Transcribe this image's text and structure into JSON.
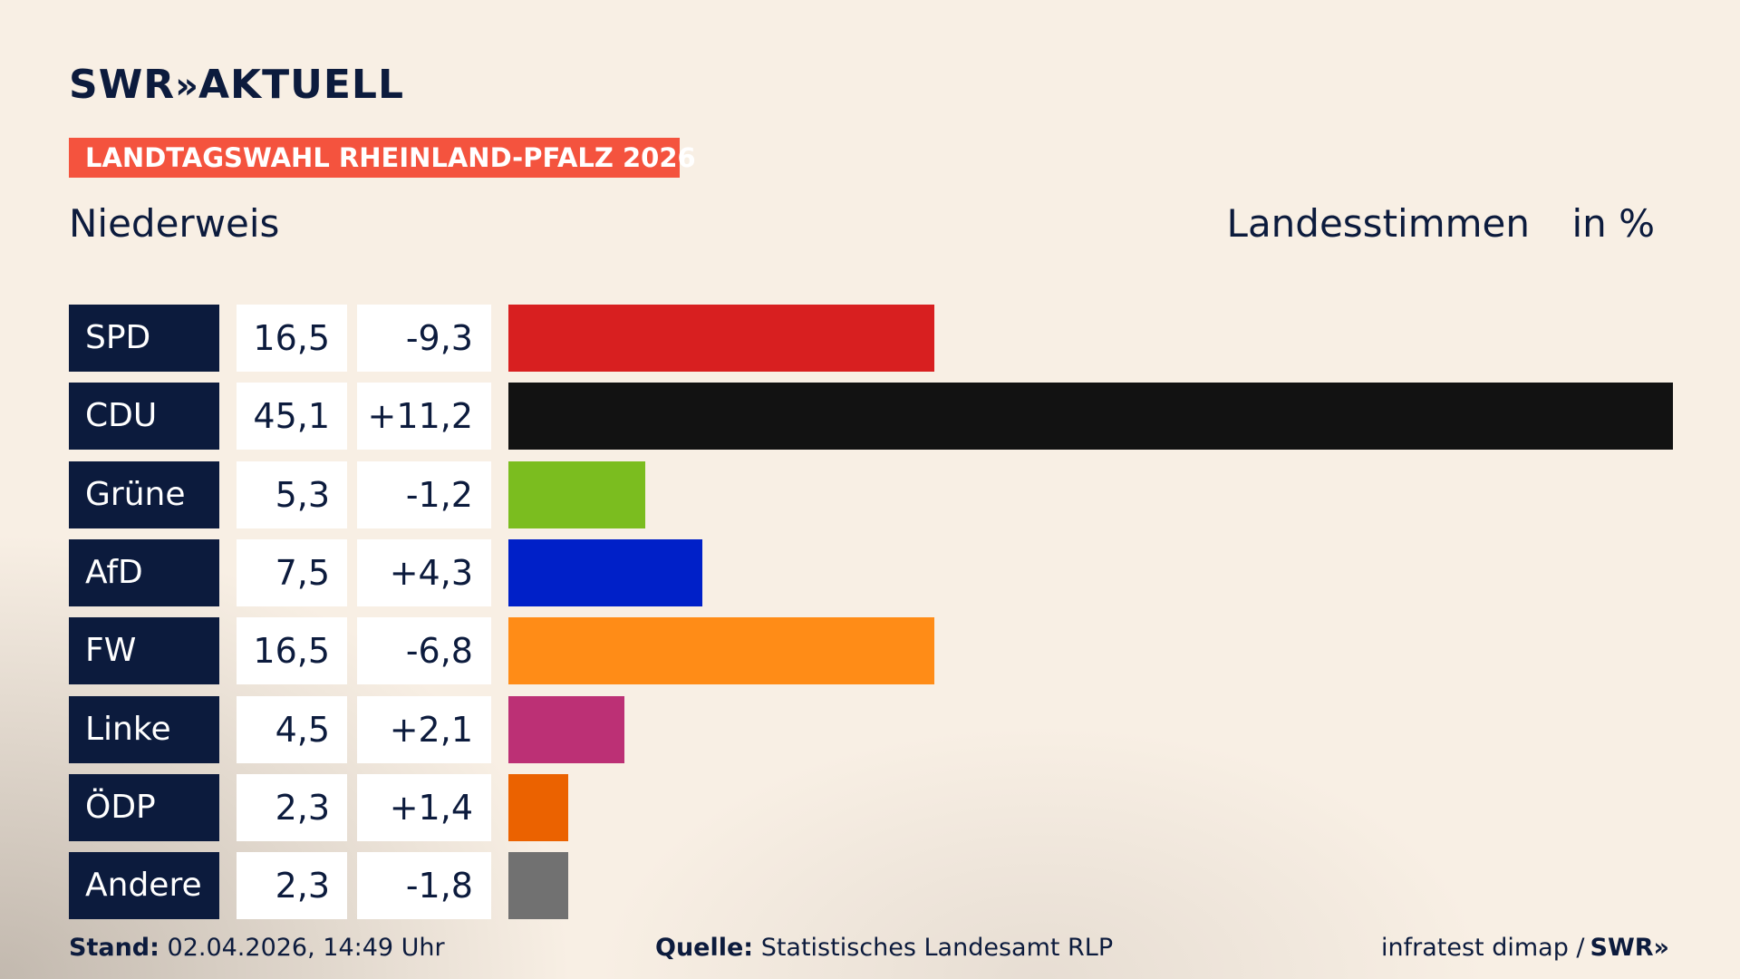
{
  "header": {
    "logo_text": "SWR",
    "logo_chevrons": "»",
    "logo_suffix": "AKTUELL",
    "tag": "LANDTAGSWAHL RHEINLAND-PFALZ 2026",
    "place": "Niederweis",
    "metric": "Landesstimmen",
    "unit": "in %"
  },
  "footer": {
    "stand_label": "Stand:",
    "stand_value": "02.04.2026, 14:49 Uhr",
    "quelle_label": "Quelle:",
    "quelle_value": "Statistisches Landesamt RLP",
    "credit": "infratest dimap /",
    "credit_logo": "SWR»"
  },
  "chart_data": {
    "type": "bar",
    "orientation": "horizontal",
    "categories": [
      "SPD",
      "CDU",
      "Grüne",
      "AfD",
      "FW",
      "Linke",
      "ÖDP",
      "Andere"
    ],
    "values": [
      16.5,
      45.1,
      5.3,
      7.5,
      16.5,
      4.5,
      2.3,
      2.3
    ],
    "value_labels": [
      "16,5",
      "45,1",
      "5,3",
      "7,5",
      "16,5",
      "4,5",
      "2,3",
      "2,3"
    ],
    "diff_labels": [
      "-9,3",
      "+11,2",
      "-1,2",
      "+4,3",
      "-6,8",
      "+2,1",
      "+1,4",
      "-1,8"
    ],
    "colors": [
      "#d81f20",
      "#121212",
      "#7bbd1f",
      "#0020c8",
      "#ff8c17",
      "#bc3075",
      "#eb6200",
      "#717171"
    ],
    "xlim": [
      0,
      45.1
    ]
  }
}
